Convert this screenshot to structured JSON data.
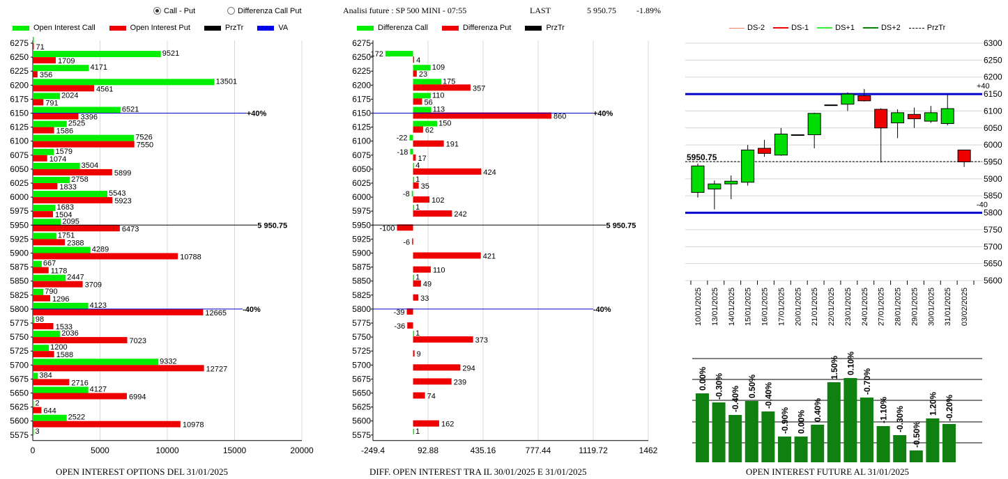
{
  "controls": {
    "option_call_put": "Call - Put",
    "option_diff": "Differenza Call Put",
    "selected": "call_put"
  },
  "header": {
    "title": "Analisi future : SP 500 MINI - 07:55",
    "last_label": "LAST",
    "last_value": "5 950.75",
    "change": "-1.89%"
  },
  "legends": {
    "oi": [
      {
        "label": "Open Interest Call",
        "color": "#00ee00"
      },
      {
        "label": "Open Interest Put",
        "color": "#ee0000"
      },
      {
        "label": "PrzTr",
        "color": "#000000"
      },
      {
        "label": "VA",
        "color": "#0000ee"
      }
    ],
    "diff": [
      {
        "label": "Differenza Call",
        "color": "#00ee00"
      },
      {
        "label": "Differenza Put",
        "color": "#ee0000"
      },
      {
        "label": "PrzTr",
        "color": "#000000"
      }
    ],
    "candle": [
      {
        "label": "DS-2",
        "color": "#f08060",
        "style": "solid"
      },
      {
        "label": "DS-1",
        "color": "#ee0000",
        "style": "solid"
      },
      {
        "label": "DS+1",
        "color": "#33ee33",
        "style": "solid"
      },
      {
        "label": "DS+2",
        "color": "#008800",
        "style": "solid"
      },
      {
        "label": "PrzTr",
        "color": "#000000",
        "style": "dashed"
      }
    ]
  },
  "titles": {
    "oi": "OPEN INTEREST OPTIONS DEL 31/01/2025",
    "diff": "DIFF. OPEN INTEREST TRA IL 30/01/2025 E 31/01/2025",
    "future": "OPEN INTEREST FUTURE AL 31/01/2025"
  },
  "chart_data": [
    {
      "type": "bar",
      "name": "oi",
      "categories": [
        "6275",
        "6250",
        "6225",
        "6200",
        "6175",
        "6150",
        "6125",
        "6100",
        "6075",
        "6050",
        "6025",
        "6000",
        "5975",
        "5950",
        "5925",
        "5900",
        "5875",
        "5850",
        "5825",
        "5800",
        "5775",
        "5750",
        "5725",
        "5700",
        "5675",
        "5650",
        "5625",
        "5600",
        "5575"
      ],
      "series": [
        {
          "name": "Open Interest Call",
          "values": [
            0,
            9521,
            4171,
            13501,
            2024,
            6521,
            2525,
            7526,
            1579,
            3504,
            2758,
            5543,
            1683,
            2095,
            1751,
            4289,
            667,
            2447,
            790,
            4123,
            98,
            2036,
            1200,
            9332,
            384,
            4127,
            2,
            2522,
            3
          ]
        },
        {
          "name": "Open Interest Put",
          "values": [
            71,
            1709,
            356,
            4561,
            791,
            3396,
            1586,
            7550,
            1074,
            5899,
            1833,
            5923,
            1504,
            6473,
            2388,
            10788,
            1178,
            3709,
            1296,
            12665,
            1533,
            7023,
            1588,
            12727,
            2716,
            6994,
            644,
            10978,
            null
          ]
        }
      ],
      "xlim": [
        0,
        20000
      ],
      "xticks": [
        "0",
        "5000",
        "10000",
        "15000",
        "20000"
      ],
      "ref_lines": [
        {
          "strike": "6150",
          "label": "+40%",
          "color": "#0000cc",
          "end": 15900
        },
        {
          "strike": "5950",
          "label": "5 950.75",
          "color": "#000000",
          "end": 16700
        },
        {
          "strike": "5800",
          "label": "-40%",
          "color": "#0000cc",
          "end": 15600
        }
      ]
    },
    {
      "type": "bar",
      "name": "diff",
      "categories": [
        "6275",
        "6250",
        "6225",
        "6200",
        "6175",
        "6150",
        "6125",
        "6100",
        "6075",
        "6050",
        "6025",
        "6000",
        "5975",
        "5950",
        "5925",
        "5900",
        "5875",
        "5850",
        "5825",
        "5800",
        "5775",
        "5750",
        "5725",
        "5700",
        "5675",
        "5650",
        "5625",
        "5600",
        "5575"
      ],
      "series": [
        {
          "name": "Differenza Call",
          "values": [
            null,
            -172,
            109,
            175,
            110,
            113,
            150,
            -22,
            -18,
            4,
            1,
            -8,
            1,
            null,
            null,
            null,
            null,
            1,
            null,
            null,
            null,
            1,
            null,
            null,
            null,
            null,
            null,
            null,
            1
          ]
        },
        {
          "name": "Differenza Put",
          "values": [
            null,
            4,
            23,
            357,
            56,
            860,
            62,
            191,
            17,
            424,
            35,
            102,
            242,
            -100,
            -6,
            421,
            110,
            49,
            33,
            -39,
            -36,
            373,
            9,
            294,
            239,
            74,
            null,
            162,
            null
          ]
        }
      ],
      "xlim": [
        -249.4,
        1462
      ],
      "xticks": [
        "-249.4",
        "92.88",
        "435.16",
        "777.44",
        "1119.72",
        "1462"
      ],
      "ref_lines": [
        {
          "strike": "6150",
          "label": "+40%",
          "color": "#0000cc",
          "end": 1119
        },
        {
          "strike": "5950",
          "label": "5 950.75",
          "color": "#000000",
          "end": 1200
        },
        {
          "strike": "5800",
          "label": "-40%",
          "color": "#0000cc",
          "end": 1119
        }
      ]
    },
    {
      "type": "candlestick",
      "name": "candles",
      "x": [
        "10/01/2025",
        "13/01/2025",
        "14/01/2025",
        "15/01/2025",
        "16/01/2025",
        "17/01/2025",
        "20/01/2025",
        "21/01/2025",
        "22/01/2025",
        "23/01/2025",
        "24/01/2025",
        "27/01/2025",
        "28/01/2025",
        "29/01/2025",
        "30/01/2025",
        "31/01/2025",
        "03/02/2025"
      ],
      "open": [
        5860,
        5870,
        5885,
        5890,
        5990,
        5970,
        6030,
        6030,
        6118,
        6120,
        6145,
        6105,
        6065,
        6090,
        6070,
        6063,
        5985
      ],
      "close": [
        5938,
        5885,
        5893,
        5985,
        5975,
        6032,
        6030,
        6093,
        6118,
        6150,
        6130,
        6050,
        6095,
        6077,
        6095,
        6107,
        5950
      ],
      "high": [
        5945,
        5895,
        5910,
        6000,
        6015,
        6050,
        6030,
        6095,
        6118,
        6155,
        6165,
        6108,
        6105,
        6110,
        6115,
        6150,
        5985
      ],
      "low": [
        5845,
        5810,
        5840,
        5880,
        5965,
        5968,
        6030,
        5990,
        6118,
        6100,
        6128,
        5948,
        6020,
        6050,
        6065,
        6058,
        5935
      ],
      "ylim": [
        5600,
        6300
      ],
      "yticks": [
        "6300",
        "6250",
        "6200",
        "6150",
        "6100",
        "6050",
        "6000",
        "5950",
        "5900",
        "5850",
        "5800",
        "5750",
        "5700",
        "5650",
        "5600"
      ],
      "levels": [
        {
          "value": 6150,
          "label": "+40",
          "color": "#0000cc"
        },
        {
          "value": 5800,
          "label": "-40",
          "color": "#0000cc"
        }
      ],
      "last_price": 5950.75,
      "last_label": "5950.75"
    },
    {
      "type": "bar",
      "name": "future",
      "values": [
        0.0,
        -0.3,
        -0.4,
        0.5,
        -0.4,
        -0.9,
        0.0,
        0.4,
        1.5,
        0.1,
        -0.7,
        -1.1,
        -0.3,
        -0.5,
        1.2,
        -0.2
      ],
      "heights": [
        99,
        86,
        68,
        88,
        73,
        37,
        37,
        54,
        115,
        121,
        93,
        52,
        39,
        17,
        63,
        55
      ],
      "labels": [
        "0.00%",
        "-0.30%",
        "-0.40%",
        "0.50%",
        "-0.40%",
        "-0.90%",
        "0.00%",
        "0.40%",
        "1.50%",
        "0.10%",
        "-0.70%",
        "-1.10%",
        "-0.30%",
        "-0.50%",
        "1.20%",
        "-0.20%"
      ],
      "color": "#108010"
    }
  ]
}
